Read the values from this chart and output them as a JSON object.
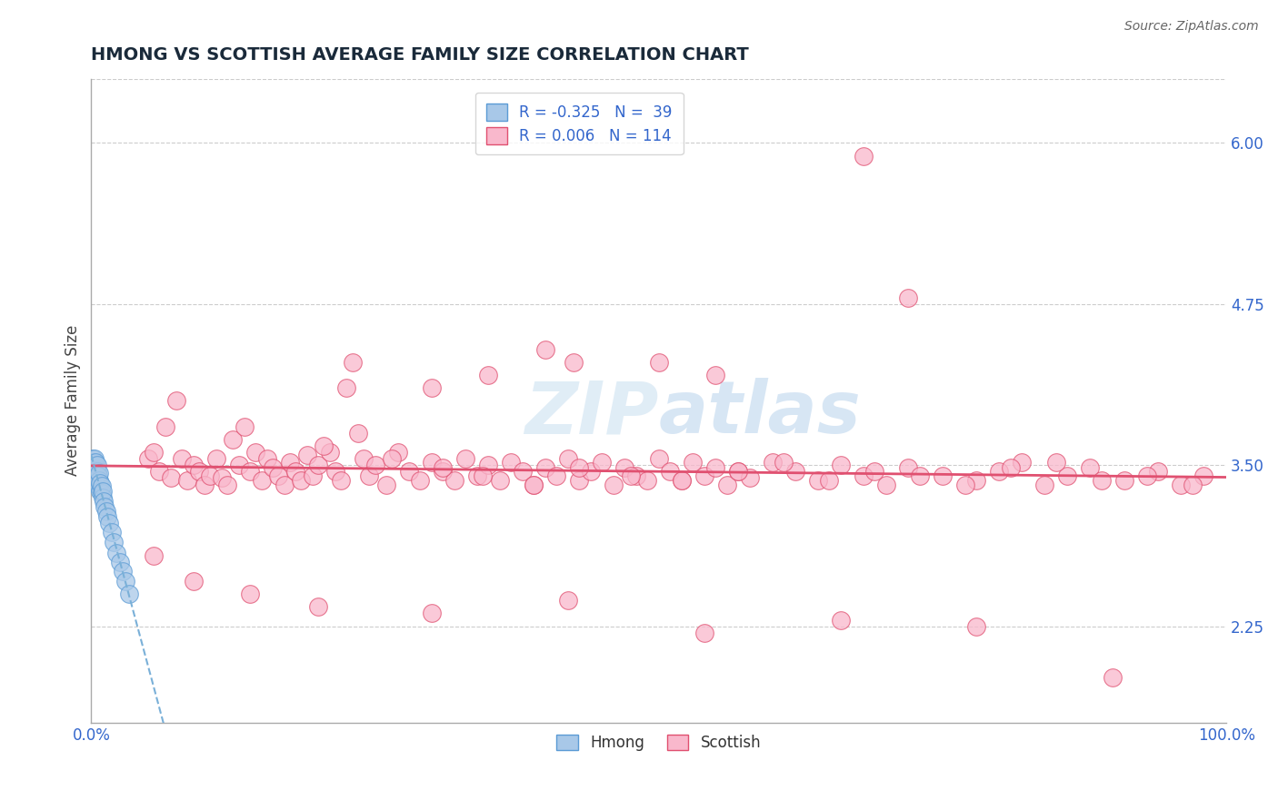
{
  "title": "HMONG VS SCOTTISH AVERAGE FAMILY SIZE CORRELATION CHART",
  "source": "Source: ZipAtlas.com",
  "ylabel": "Average Family Size",
  "xlim": [
    0.0,
    1.0
  ],
  "ylim": [
    1.5,
    6.5
  ],
  "yticks": [
    2.25,
    3.5,
    4.75,
    6.0
  ],
  "xtick_positions": [
    0.0,
    0.1,
    0.2,
    0.3,
    0.4,
    0.5,
    0.6,
    0.7,
    0.8,
    0.9,
    1.0
  ],
  "xticklabels": [
    "0.0%",
    "",
    "",
    "",
    "",
    "",
    "",
    "",
    "",
    "",
    "100.0%"
  ],
  "legend_hmong_r": "-0.325",
  "legend_hmong_n": "39",
  "legend_scottish_r": "0.006",
  "legend_scottish_n": "114",
  "hmong_face_color": "#a8c8e8",
  "hmong_edge_color": "#5b9bd5",
  "scottish_face_color": "#f9b8cc",
  "scottish_edge_color": "#e05070",
  "hmong_line_color": "#7ab0d8",
  "scottish_line_color": "#e05070",
  "background_color": "#ffffff",
  "grid_color": "#cccccc",
  "title_color": "#1a2a3a",
  "ylabel_color": "#444444",
  "tick_color": "#3366cc",
  "watermark_color": "#c8dff0",
  "hmong_x": [
    0.001,
    0.001,
    0.002,
    0.002,
    0.002,
    0.003,
    0.003,
    0.003,
    0.003,
    0.004,
    0.004,
    0.004,
    0.005,
    0.005,
    0.005,
    0.005,
    0.006,
    0.006,
    0.007,
    0.007,
    0.007,
    0.008,
    0.008,
    0.009,
    0.009,
    0.01,
    0.01,
    0.011,
    0.012,
    0.013,
    0.014,
    0.016,
    0.018,
    0.02,
    0.022,
    0.025,
    0.028,
    0.03,
    0.033
  ],
  "hmong_y": [
    3.5,
    3.55,
    3.42,
    3.48,
    3.52,
    3.38,
    3.44,
    3.5,
    3.55,
    3.4,
    3.46,
    3.52,
    3.35,
    3.4,
    3.45,
    3.5,
    3.36,
    3.42,
    3.33,
    3.38,
    3.44,
    3.3,
    3.36,
    3.28,
    3.34,
    3.25,
    3.3,
    3.22,
    3.18,
    3.14,
    3.1,
    3.05,
    2.98,
    2.9,
    2.82,
    2.75,
    2.68,
    2.6,
    2.5
  ],
  "scottish_x": [
    0.05,
    0.055,
    0.06,
    0.07,
    0.08,
    0.085,
    0.09,
    0.095,
    0.1,
    0.105,
    0.11,
    0.115,
    0.12,
    0.13,
    0.14,
    0.145,
    0.15,
    0.155,
    0.16,
    0.165,
    0.17,
    0.175,
    0.18,
    0.185,
    0.19,
    0.195,
    0.2,
    0.21,
    0.215,
    0.22,
    0.225,
    0.23,
    0.24,
    0.245,
    0.25,
    0.26,
    0.27,
    0.28,
    0.29,
    0.3,
    0.31,
    0.32,
    0.33,
    0.34,
    0.35,
    0.36,
    0.37,
    0.38,
    0.39,
    0.4,
    0.41,
    0.42,
    0.43,
    0.44,
    0.45,
    0.46,
    0.47,
    0.48,
    0.49,
    0.5,
    0.51,
    0.52,
    0.53,
    0.54,
    0.55,
    0.56,
    0.57,
    0.58,
    0.6,
    0.62,
    0.64,
    0.66,
    0.68,
    0.7,
    0.72,
    0.75,
    0.78,
    0.8,
    0.82,
    0.84,
    0.86,
    0.88,
    0.91,
    0.94,
    0.96,
    0.98,
    0.065,
    0.075,
    0.125,
    0.135,
    0.205,
    0.235,
    0.265,
    0.31,
    0.345,
    0.39,
    0.43,
    0.475,
    0.52,
    0.57,
    0.61,
    0.65,
    0.69,
    0.73,
    0.77,
    0.81,
    0.85,
    0.89,
    0.93,
    0.97,
    0.055,
    0.09,
    0.14,
    0.2,
    0.3,
    0.42,
    0.54,
    0.66,
    0.78,
    0.9
  ],
  "scottish_y": [
    3.55,
    3.6,
    3.45,
    3.4,
    3.55,
    3.38,
    3.5,
    3.45,
    3.35,
    3.42,
    3.55,
    3.4,
    3.35,
    3.5,
    3.45,
    3.6,
    3.38,
    3.55,
    3.48,
    3.42,
    3.35,
    3.52,
    3.45,
    3.38,
    3.58,
    3.42,
    3.5,
    3.6,
    3.45,
    3.38,
    4.1,
    4.3,
    3.55,
    3.42,
    3.5,
    3.35,
    3.6,
    3.45,
    3.38,
    3.52,
    3.45,
    3.38,
    3.55,
    3.42,
    3.5,
    3.38,
    3.52,
    3.45,
    3.35,
    3.48,
    3.42,
    3.55,
    3.38,
    3.45,
    3.52,
    3.35,
    3.48,
    3.42,
    3.38,
    3.55,
    3.45,
    3.38,
    3.52,
    3.42,
    3.48,
    3.35,
    3.45,
    3.4,
    3.52,
    3.45,
    3.38,
    3.5,
    3.42,
    3.35,
    3.48,
    3.42,
    3.38,
    3.45,
    3.52,
    3.35,
    3.42,
    3.48,
    3.38,
    3.45,
    3.35,
    3.42,
    3.8,
    4.0,
    3.7,
    3.8,
    3.65,
    3.75,
    3.55,
    3.48,
    3.42,
    3.35,
    3.48,
    3.42,
    3.38,
    3.45,
    3.52,
    3.38,
    3.45,
    3.42,
    3.35,
    3.48,
    3.52,
    3.38,
    3.42,
    3.35,
    2.8,
    2.6,
    2.5,
    2.4,
    2.35,
    2.45,
    2.2,
    2.3,
    2.25,
    1.85
  ],
  "scottish_outliers_x": [
    0.68,
    0.72,
    0.4,
    0.425,
    0.5,
    0.55,
    0.35,
    0.3
  ],
  "scottish_outliers_y": [
    5.9,
    4.8,
    4.4,
    4.3,
    4.3,
    4.2,
    4.2,
    4.1
  ],
  "hmong_trendline_x0": 0.0,
  "hmong_trendline_y0": 3.52,
  "hmong_trendline_x1": 0.25,
  "hmong_trendline_y1": 1.5,
  "scottish_trendline_y": 3.38
}
